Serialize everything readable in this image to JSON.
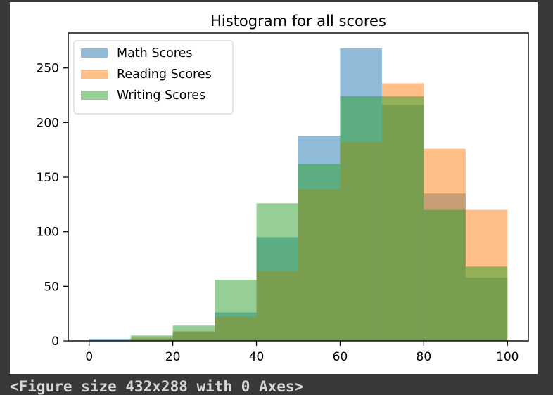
{
  "chart_data": {
    "type": "bar",
    "title": "Histogram for all scores",
    "xlabel": "",
    "ylabel": "",
    "xlim": [
      -5,
      105
    ],
    "ylim": [
      0,
      282
    ],
    "xticks": [
      0,
      20,
      40,
      60,
      80,
      100
    ],
    "yticks": [
      0,
      50,
      100,
      150,
      200,
      250
    ],
    "bin_edges": [
      0,
      10,
      20,
      30,
      40,
      50,
      60,
      70,
      80,
      90,
      100
    ],
    "histogram": "overlapping, semi-transparent",
    "alpha": 0.5,
    "legend_position": "top-left",
    "series": [
      {
        "name": "Math Scores",
        "color": "#1f77b4",
        "values": [
          2,
          2,
          8,
          26,
          95,
          188,
          268,
          216,
          135,
          58
        ]
      },
      {
        "name": "Reading Scores",
        "color": "#ff7f0e",
        "values": [
          0,
          3,
          9,
          22,
          64,
          139,
          182,
          236,
          176,
          120
        ]
      },
      {
        "name": "Writing Scores",
        "color": "#2ca02c",
        "values": [
          0,
          5,
          14,
          56,
          126,
          162,
          224,
          224,
          120,
          68
        ]
      }
    ]
  },
  "caption": "<Figure size 432x288 with 0 Axes>"
}
